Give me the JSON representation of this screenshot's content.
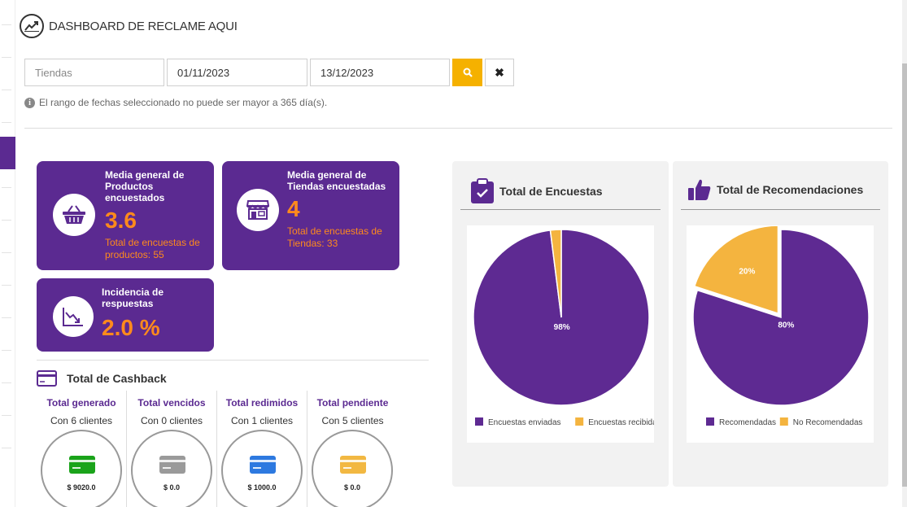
{
  "header": {
    "title": "DASHBOARD DE RECLAME AQUI",
    "icon": "trend-chart-icon"
  },
  "filters": {
    "store_placeholder": "Tiendas",
    "store_value": "",
    "date_from": "01/11/2023",
    "date_to": "13/12/2023",
    "search_icon": "search-icon",
    "clear_label": "✖"
  },
  "note": "El rango de fechas seleccionado no puede ser mayor a 365 día(s).",
  "cards": {
    "products": {
      "title": "Media general de Productos encuestados",
      "value": "3.6",
      "subtitle": "Total de encuestas de productos: 55",
      "icon": "shopping-basket-icon"
    },
    "stores": {
      "title": "Media general de Tiendas encuestadas",
      "value": "4",
      "subtitle": "Total de encuestas de Tiendas: 33",
      "icon": "storefront-icon"
    },
    "incidence": {
      "title": "Incidencia de respuestas",
      "value": "2.0 %",
      "icon": "trend-down-icon"
    }
  },
  "cashback": {
    "title": "Total de Cashback",
    "items": [
      {
        "label": "Total generado",
        "clients": "Con 6 clientes",
        "amount": "$ 9020.0",
        "color": "#1aa31a"
      },
      {
        "label": "Total vencidos",
        "clients": "Con 0 clientes",
        "amount": "$ 0.0",
        "color": "#9a9a9a"
      },
      {
        "label": "Total redimidos",
        "clients": "Con 1 clientes",
        "amount": "$ 1000.0",
        "color": "#2d79e0"
      },
      {
        "label": "Total pendiente",
        "clients": "Con 5 clientes",
        "amount": "$ 0.0",
        "color": "#f2b842"
      }
    ]
  },
  "colors": {
    "purple": "#5b2a91",
    "orange": "#ff8a1c",
    "pie_purple": "#5e2a92",
    "pie_yellow": "#f4b43f"
  },
  "chart_data": [
    {
      "type": "pie",
      "title": "Total de Encuestas",
      "categories": [
        "Encuestas enviadas",
        "Encuestas recibidas"
      ],
      "values": [
        98,
        2
      ],
      "labels": [
        "98%",
        ""
      ],
      "colors": [
        "#5e2a92",
        "#f4b43f"
      ],
      "legend": "bottom"
    },
    {
      "type": "pie",
      "title": "Total de Recomendaciones",
      "categories": [
        "Recomendadas",
        "No Recomendadas"
      ],
      "values": [
        80,
        20
      ],
      "labels": [
        "80%",
        "20%"
      ],
      "colors": [
        "#5e2a92",
        "#f4b43f"
      ],
      "legend": "bottom"
    }
  ]
}
